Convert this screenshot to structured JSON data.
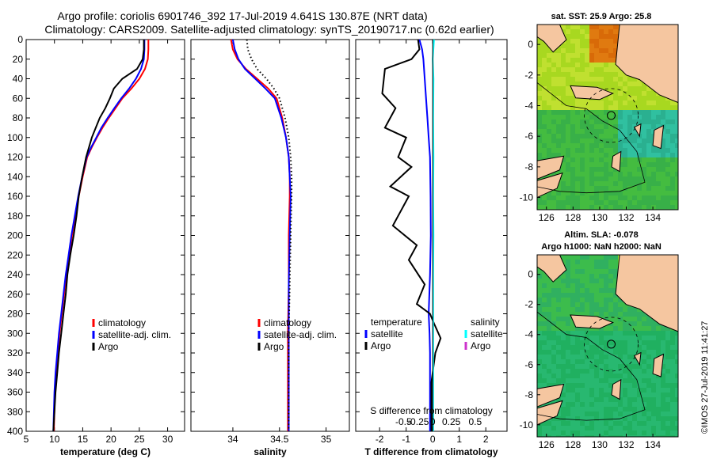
{
  "title_line1": "Argo profile: coriolis 6901746_392 17-Jul-2019 4.641S 130.87E (NRT data)",
  "title_line2": "Climatology: CARS2009. Satellite-adjusted climatology: synTS_20190717.nc (0.62d earlier)",
  "credit": "©IMOS 27-Jul-2019 11:41:27",
  "colors": {
    "climatology": "#ff0000",
    "satellite": "#0000ff",
    "argo": "#000000",
    "satellite_salinity": "#00ffff",
    "argo_salinity": "#cc33cc",
    "land": "#f5c6a0"
  },
  "chart_data": [
    {
      "type": "line",
      "id": "temperature",
      "xlabel": "temperature (deg C)",
      "ylabel": "",
      "xlim": [
        5,
        33
      ],
      "ylim": [
        0,
        400
      ],
      "xticks": [
        5,
        10,
        15,
        20,
        25,
        30
      ],
      "yticks": [
        0,
        20,
        40,
        60,
        80,
        100,
        120,
        140,
        160,
        180,
        200,
        220,
        240,
        260,
        280,
        300,
        320,
        340,
        360,
        380,
        400
      ],
      "legend": [
        "climatology",
        "satellite-adj. clim.",
        "Argo"
      ],
      "series": [
        {
          "name": "climatology",
          "color": "#ff0000",
          "x": [
            26.6,
            26.6,
            26.5,
            26.0,
            25.0,
            23.6,
            22.0,
            20.8,
            19.6,
            18.5,
            17.5,
            16.6,
            15.8,
            15.0,
            14.3,
            13.7,
            13.1,
            12.6,
            12.1,
            11.7,
            11.3,
            10.9,
            10.6,
            10.3,
            10.1,
            9.9
          ],
          "y": [
            0,
            10,
            20,
            30,
            40,
            50,
            60,
            70,
            80,
            90,
            100,
            110,
            120,
            140,
            160,
            180,
            200,
            220,
            240,
            260,
            280,
            300,
            320,
            340,
            360,
            400
          ]
        },
        {
          "name": "satellite-adj. clim.",
          "color": "#0000ff",
          "x": [
            25.9,
            25.9,
            25.8,
            25.3,
            24.4,
            23.2,
            21.8,
            20.6,
            19.4,
            18.3,
            17.4,
            16.5,
            15.7,
            14.9,
            14.2,
            13.6,
            13.0,
            12.5,
            12.0,
            11.6,
            11.2,
            10.8,
            10.5,
            10.2,
            10.0,
            9.8
          ],
          "y": [
            0,
            10,
            20,
            30,
            40,
            50,
            60,
            70,
            80,
            90,
            100,
            110,
            120,
            140,
            160,
            180,
            200,
            220,
            240,
            260,
            280,
            300,
            320,
            340,
            360,
            400
          ]
        },
        {
          "name": "Argo",
          "color": "#000000",
          "x": [
            25.8,
            25.8,
            25.6,
            24.6,
            22.0,
            20.5,
            19.8,
            19.0,
            18.0,
            17.3,
            16.6,
            15.6,
            14.9,
            14.3,
            13.9,
            13.4,
            12.8,
            12.3,
            12.0,
            11.6,
            11.2,
            10.8,
            10.5,
            10.2,
            10.0,
            9.8
          ],
          "y": [
            0,
            10,
            20,
            30,
            40,
            50,
            60,
            70,
            80,
            90,
            100,
            120,
            140,
            160,
            180,
            200,
            220,
            240,
            260,
            280,
            300,
            320,
            340,
            360,
            380,
            400
          ]
        }
      ]
    },
    {
      "type": "line",
      "id": "salinity",
      "xlabel": "salinity",
      "ylabel": "",
      "xlim": [
        33.55,
        35.25
      ],
      "ylim": [
        0,
        400
      ],
      "xticks": [
        34,
        34.5,
        35
      ],
      "yticks": [
        0,
        20,
        40,
        60,
        80,
        100,
        120,
        140,
        160,
        180,
        200,
        220,
        240,
        260,
        280,
        300,
        320,
        340,
        360,
        380,
        400
      ],
      "legend": [
        "climatology",
        "satellite-adj. clim.",
        "Argo"
      ],
      "series": [
        {
          "name": "climatology",
          "color": "#ff0000",
          "x": [
            33.98,
            34.0,
            34.05,
            34.14,
            34.26,
            34.38,
            34.47,
            34.53,
            34.57,
            34.6,
            34.61,
            34.61,
            34.6,
            34.6,
            34.59,
            34.59
          ],
          "y": [
            0,
            10,
            20,
            30,
            40,
            50,
            60,
            80,
            100,
            120,
            140,
            160,
            200,
            250,
            300,
            400
          ]
        },
        {
          "name": "satellite-adj. clim.",
          "color": "#0000ff",
          "x": [
            34.0,
            34.02,
            34.06,
            34.13,
            34.24,
            34.35,
            34.45,
            34.52,
            34.57,
            34.6,
            34.61,
            34.62,
            34.61,
            34.6,
            34.6,
            34.6
          ],
          "y": [
            0,
            10,
            20,
            30,
            40,
            50,
            60,
            80,
            100,
            120,
            140,
            160,
            200,
            250,
            300,
            400
          ]
        },
        {
          "name": "Argo",
          "color": "#000000",
          "dotted": true,
          "x": [
            34.15,
            34.16,
            34.2,
            34.26,
            34.36,
            34.44,
            34.5,
            34.56,
            34.6,
            34.62,
            34.63,
            34.63,
            34.62,
            34.61,
            34.6,
            34.6
          ],
          "y": [
            0,
            10,
            20,
            30,
            40,
            50,
            60,
            80,
            100,
            120,
            140,
            160,
            200,
            250,
            300,
            400
          ]
        }
      ]
    },
    {
      "type": "line",
      "id": "difference",
      "xlabel": "T difference from climatology",
      "inner_label": "S difference from climatology",
      "xlim": [
        -2.9,
        2.8
      ],
      "ylim": [
        0,
        400
      ],
      "xticks": [
        -2,
        -1,
        0,
        1,
        2
      ],
      "sticks": [
        "-0.5",
        "-0.25",
        "0",
        "0.25",
        "0.5"
      ],
      "yticks": [
        0,
        20,
        40,
        60,
        80,
        100,
        120,
        140,
        160,
        180,
        200,
        220,
        240,
        260,
        280,
        300,
        320,
        340,
        360,
        380,
        400
      ],
      "legend_temperature_title": "temperature",
      "legend_temperature": [
        "satellite",
        "Argo"
      ],
      "legend_salinity_title": "salinity",
      "legend_salinity": [
        "satellite",
        "Argo"
      ],
      "series": [
        {
          "name": "T satellite",
          "color": "#0000ff",
          "x": [
            -0.5,
            -0.4,
            -0.35,
            -0.3,
            -0.25,
            -0.2,
            -0.15,
            -0.1,
            -0.08,
            -0.07,
            -0.1,
            -0.15,
            -0.12,
            -0.1,
            -0.1,
            -0.1
          ],
          "y": [
            0,
            10,
            20,
            40,
            60,
            80,
            100,
            120,
            160,
            200,
            240,
            280,
            300,
            320,
            360,
            400
          ]
        },
        {
          "name": "T Argo",
          "color": "#000000",
          "x": [
            -0.55,
            -0.5,
            -0.8,
            -1.8,
            -1.9,
            -1.4,
            -1.8,
            -1.0,
            -1.3,
            -0.8,
            -1.6,
            -0.9,
            -1.5,
            -0.6,
            -0.9,
            -0.3,
            -0.6,
            -0.1,
            0.05,
            0.3,
            0.1,
            -0.05,
            -0.05
          ],
          "y": [
            0,
            10,
            20,
            30,
            55,
            70,
            90,
            100,
            120,
            130,
            150,
            160,
            190,
            210,
            225,
            250,
            270,
            280,
            290,
            305,
            320,
            350,
            400
          ]
        },
        {
          "name": "S satellite",
          "color": "#00ffff",
          "x": [
            0.05,
            0.0,
            0.03,
            0.02,
            0.03,
            0.02,
            0.03,
            0.02,
            0.02,
            0.02,
            0.02
          ],
          "y": [
            0,
            20,
            40,
            80,
            120,
            160,
            200,
            240,
            280,
            340,
            400
          ]
        }
      ]
    }
  ],
  "maps": [
    {
      "title_lines": [
        "sat. SST: 25.9 Argo: 25.8"
      ],
      "xticks": [
        "126",
        "128",
        "130",
        "132",
        "134"
      ],
      "yticks": [
        "0",
        "-2",
        "-4",
        "-6",
        "-8",
        "-10"
      ],
      "lon": [
        125.3,
        135.9
      ],
      "lat": [
        -10.8,
        1.3
      ],
      "float_lon": 130.87,
      "float_lat": -4.641
    },
    {
      "title_lines": [
        "Altim. SLA: -0.078",
        "Argo h1000: NaN h2000: NaN"
      ],
      "xticks": [
        "126",
        "128",
        "130",
        "132",
        "134"
      ],
      "yticks": [
        "0",
        "-2",
        "-4",
        "-6",
        "-8",
        "-10"
      ],
      "lon": [
        125.3,
        135.9
      ],
      "lat": [
        -10.8,
        1.3
      ],
      "float_lon": 130.87,
      "float_lat": -4.641
    }
  ]
}
